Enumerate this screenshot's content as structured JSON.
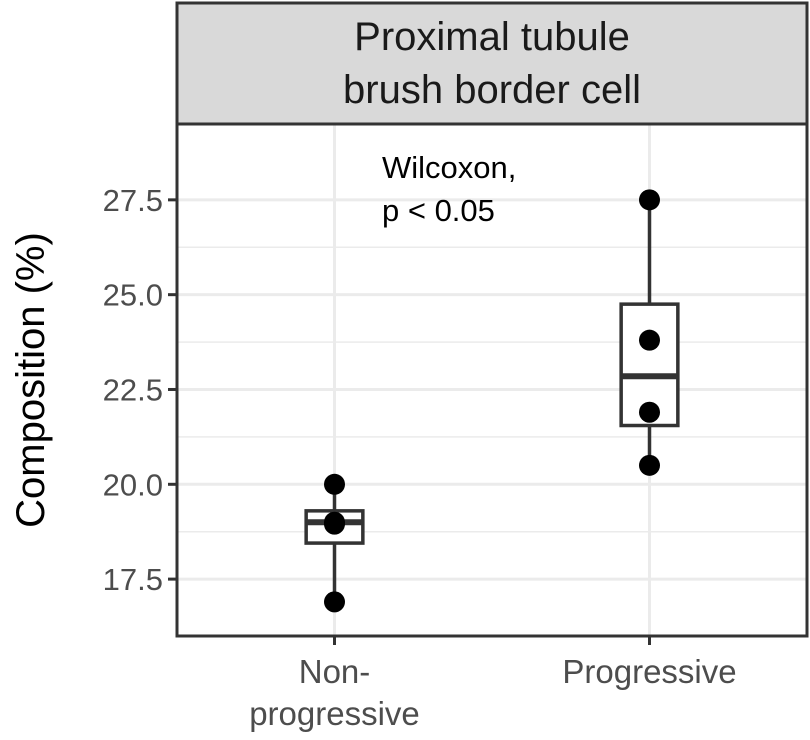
{
  "chart_data": {
    "type": "box",
    "facet_title_lines": [
      "Proximal tubule",
      "brush border cell"
    ],
    "ylabel": "Composition (%)",
    "xlabel": "",
    "ylim": [
      16.0,
      29.5
    ],
    "y_ticks": [
      17.5,
      20.0,
      22.5,
      25.0,
      27.5
    ],
    "y_tick_labels": [
      "17.5",
      "20.0",
      "22.5",
      "25.0",
      "27.5"
    ],
    "grid": true,
    "annotation_lines": [
      "Wilcoxon,",
      "p < 0.05"
    ],
    "categories": [
      {
        "label_lines": [
          "Non-",
          "progressive"
        ]
      },
      {
        "label_lines": [
          "Progressive"
        ]
      }
    ],
    "boxes": [
      {
        "whisker_low": 16.9,
        "q1": 18.45,
        "median": 19.0,
        "q3": 19.3,
        "whisker_high": 20.0
      },
      {
        "whisker_low": 20.5,
        "q1": 21.55,
        "median": 22.85,
        "q3": 24.75,
        "whisker_high": 27.5
      }
    ],
    "points": [
      [
        20.0,
        19.0,
        18.95,
        16.9
      ],
      [
        27.5,
        23.8,
        21.9,
        20.5
      ]
    ],
    "colors": {
      "panel_border": "#333333",
      "strip_fill": "#d9d9d9",
      "grid": "#ebebeb",
      "box_line": "#333333",
      "point": "#000000"
    }
  }
}
